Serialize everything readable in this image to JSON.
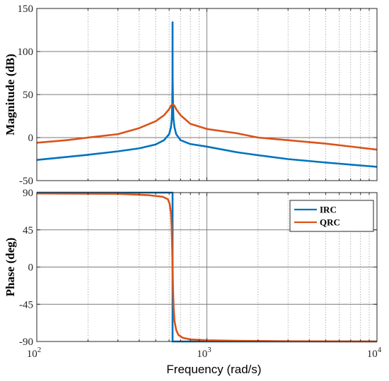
{
  "chart_data": [
    {
      "type": "line",
      "ylabel": "Magnitude (dB)",
      "xscale": "log",
      "xlim": [
        100,
        10000
      ],
      "ylim": [
        -50,
        150
      ],
      "yticks": [
        "150",
        "100",
        "50",
        "0",
        "-50"
      ],
      "grid": true,
      "series": [
        {
          "name": "IRC",
          "color": "#0072BD",
          "x": [
            100,
            150,
            200,
            300,
            400,
            500,
            560,
            600,
            615,
            622,
            626,
            628,
            628.5,
            629,
            632,
            636,
            645,
            660,
            700,
            800,
            1000,
            1500,
            2000,
            3000,
            5000,
            10000
          ],
          "y": [
            -26,
            -22.5,
            -20,
            -16,
            -12.5,
            -8,
            -3,
            4,
            12,
            22,
            40,
            70,
            134,
            70,
            40,
            22,
            12,
            4,
            -3,
            -7.5,
            -10.5,
            -17,
            -20.5,
            -25,
            -29,
            -34
          ]
        },
        {
          "name": "QRC",
          "color": "#D95319",
          "x": [
            100,
            150,
            200,
            300,
            400,
            500,
            560,
            600,
            615,
            628.5,
            645,
            660,
            700,
            800,
            1000,
            1500,
            2000,
            3000,
            5000,
            10000
          ],
          "y": [
            -6,
            -3,
            0,
            4,
            11,
            19,
            26,
            33,
            37,
            39,
            37,
            33,
            26,
            16,
            10,
            5,
            0,
            -3,
            -7,
            -14
          ]
        }
      ]
    },
    {
      "type": "line",
      "xlabel": "Frequency  (rad/s)",
      "ylabel": "Phase (deg)",
      "xscale": "log",
      "xlim": [
        100,
        10000
      ],
      "ylim": [
        -90,
        90
      ],
      "xticks": [
        "10^2",
        "10^3",
        "10^4"
      ],
      "yticks": [
        "90",
        "45",
        "0",
        "-45",
        "-90"
      ],
      "grid": true,
      "legend": "top-right",
      "series": [
        {
          "name": "IRC",
          "color": "#0072BD",
          "x": [
            100,
            628.5,
            628.5,
            10000
          ],
          "y": [
            90,
            90,
            -90,
            -90
          ]
        },
        {
          "name": "QRC",
          "color": "#D95319",
          "x": [
            100,
            300,
            450,
            550,
            590,
            605,
            615,
            620,
            625,
            628.5,
            632,
            638,
            645,
            660,
            680,
            720,
            800,
            1000,
            1500,
            3000,
            10000
          ],
          "y": [
            89,
            88.5,
            87,
            85,
            82,
            76,
            65,
            50,
            25,
            0,
            -25,
            -50,
            -65,
            -76,
            -82,
            -85.5,
            -87.5,
            -88.5,
            -89.2,
            -89.7,
            -90
          ]
        }
      ]
    }
  ]
}
